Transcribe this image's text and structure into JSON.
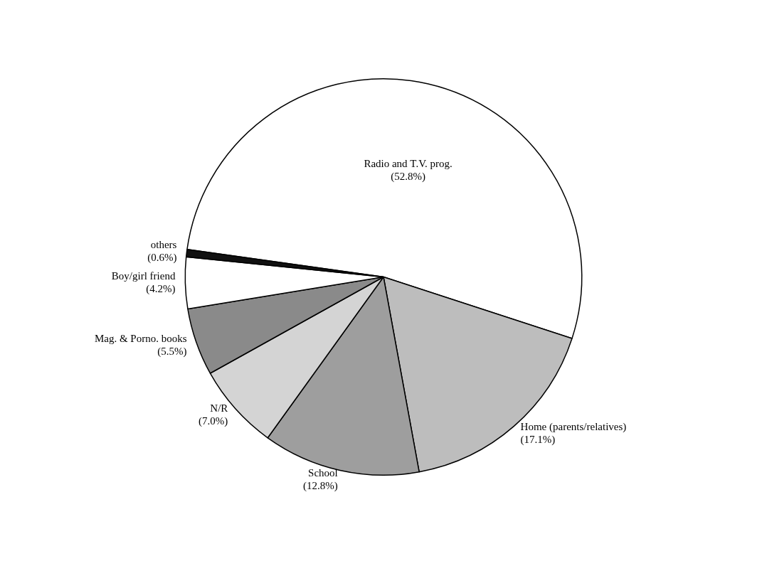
{
  "chart_data": {
    "type": "pie",
    "categories": [
      "Radio and T.V. prog.",
      "Home (parents/relatives)",
      "School",
      "N/R",
      "Mag. & Porno. books",
      "Boy/girl friend",
      "others"
    ],
    "values": [
      52.8,
      17.1,
      12.8,
      7.0,
      5.5,
      4.2,
      0.6
    ],
    "value_labels": [
      "(52.8%)",
      "(17.1%)",
      "(12.8%)",
      "(7.0%)",
      "(5.5%)",
      "(4.2%)",
      "(0.6%)"
    ],
    "colors": [
      "#ffffff",
      "#bdbdbd",
      "#9e9e9e",
      "#d4d4d4",
      "#8a8a8a",
      "#ffffff",
      "#111111"
    ],
    "data_labels": true
  }
}
